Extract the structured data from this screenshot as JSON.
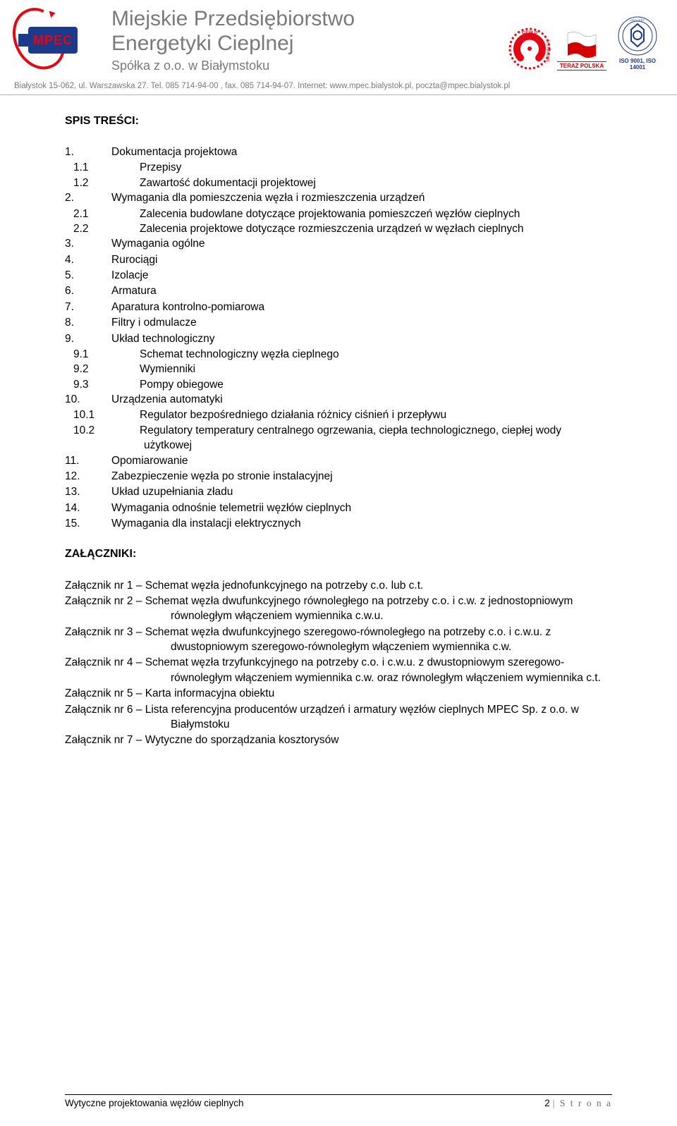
{
  "header": {
    "logo_text": "MPEC",
    "company_line1": "Miejskie Przedsiębiorstwo",
    "company_line2": "Energetyki Cieplnej",
    "company_sub": "Spółka z o.o. w Białymstoku",
    "teraz_label": "TERAZ POLSKA",
    "iso_label": "ISO 9001, ISO 14001",
    "address": "Białystok 15-062, ul. Warszawska 27. Tel. 085 714-94-00 , fax. 085 714-94-07. Internet: www.mpec.bialystok.pl, poczta@mpec.bialystok.pl"
  },
  "colors": {
    "red": "#e30613",
    "navy": "#1b3a8a",
    "grey_text": "#7a7a7a",
    "divider": "#b0b0b0",
    "footer_grey": "#6f6f6f"
  },
  "toc": {
    "title": "SPIS TREŚCI:",
    "items": [
      {
        "n": "1.",
        "t": "Dokumentacja projektowa",
        "sub": [
          {
            "n": "1.1",
            "t": "Przepisy"
          },
          {
            "n": "1.2",
            "t": "Zawartość dokumentacji projektowej"
          }
        ]
      },
      {
        "n": "2.",
        "t": "Wymagania dla pomieszczenia węzła i rozmieszczenia urządzeń",
        "sub": [
          {
            "n": "2.1",
            "t": "Zalecenia budowlane dotyczące projektowania pomieszczeń węzłów cieplnych"
          },
          {
            "n": "2.2",
            "t": "Zalecenia projektowe dotyczące rozmieszczenia urządzeń w węzłach cieplnych"
          }
        ]
      },
      {
        "n": "3.",
        "t": "Wymagania ogólne"
      },
      {
        "n": "4.",
        "t": "Rurociągi"
      },
      {
        "n": "5.",
        "t": "Izolacje"
      },
      {
        "n": "6.",
        "t": "Armatura"
      },
      {
        "n": "7.",
        "t": "Aparatura kontrolno-pomiarowa"
      },
      {
        "n": "8.",
        "t": "Filtry i odmulacze"
      },
      {
        "n": "9.",
        "t": "Układ technologiczny",
        "sub": [
          {
            "n": "9.1",
            "t": "Schemat technologiczny węzła cieplnego"
          },
          {
            "n": "9.2",
            "t": "Wymienniki"
          },
          {
            "n": "9.3",
            "t": "Pompy obiegowe"
          }
        ]
      },
      {
        "n": "10.",
        "t": "Urządzenia automatyki",
        "sub": [
          {
            "n": "10.1",
            "t": "Regulator bezpośredniego działania różnicy ciśnień i przepływu"
          },
          {
            "n": "10.2",
            "t": "Regulatory temperatury centralnego ogrzewania, ciepła technologicznego, ciepłej wody użytkowej"
          }
        ]
      },
      {
        "n": "11.",
        "t": "Opomiarowanie"
      },
      {
        "n": "12.",
        "t": "Zabezpieczenie węzła po stronie instalacyjnej"
      },
      {
        "n": "13.",
        "t": "Układ uzupełniania zładu"
      },
      {
        "n": "14.",
        "t": "Wymagania odnośnie telemetrii węzłów cieplnych"
      },
      {
        "n": "15.",
        "t": "Wymagania dla instalacji elektrycznych"
      }
    ]
  },
  "attachments": {
    "title": "ZAŁĄCZNIKI:",
    "items": [
      {
        "label": "Załącznik nr 1",
        "text": "Schemat węzła jednofunkcyjnego na potrzeby c.o. lub c.t."
      },
      {
        "label": "Załącznik nr 2",
        "text": "Schemat węzła dwufunkcyjnego równoległego na potrzeby c.o. i c.w. z jednostopniowym równoległym włączeniem wymiennika c.w.u."
      },
      {
        "label": "Załącznik nr 3",
        "text": "Schemat węzła dwufunkcyjnego szeregowo-równoległego na potrzeby c.o. i c.w.u. z dwustopniowym szeregowo-równoległym włączeniem wymiennika c.w."
      },
      {
        "label": "Załącznik nr 4",
        "text": "Schemat węzła trzyfunkcyjnego na potrzeby c.o. i c.w.u. z dwustopniowym szeregowo-równoległym włączeniem wymiennika c.w. oraz równoległym włączeniem wymiennika c.t."
      },
      {
        "label": "Załącznik nr 5",
        "text": "Karta informacyjna obiektu"
      },
      {
        "label": "Załącznik nr 6",
        "text": "Lista referencyjna producentów urządzeń i armatury węzłów cieplnych MPEC Sp. z o.o. w Białymstoku"
      },
      {
        "label": "Załącznik nr 7",
        "text": "Wytyczne do sporządzania kosztorysów"
      }
    ]
  },
  "footer": {
    "left": "Wytyczne projektowania węzłów cieplnych",
    "page_num": "2",
    "page_label": "| S t r o n a"
  }
}
